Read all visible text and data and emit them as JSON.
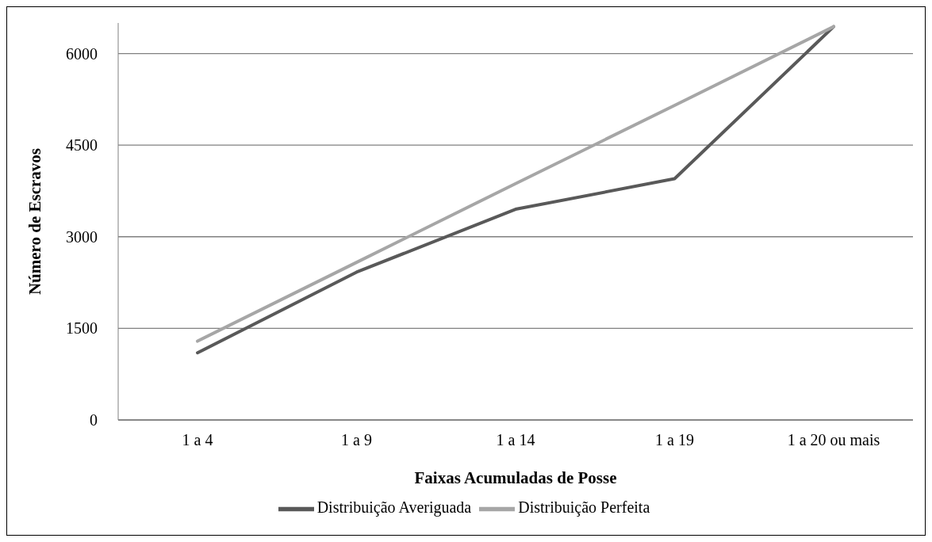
{
  "chart_data": {
    "type": "line",
    "xlabel": "Faixas Acumuladas de Posse",
    "ylabel": "Número de Escravos",
    "categories": [
      "1 a 4",
      "1 a 9",
      "1 a 14",
      "1 a 19",
      "1 a 20 ou mais"
    ],
    "series": [
      {
        "name": "Distribuição Averiguada",
        "color": "#595959",
        "values": [
          1100,
          2420,
          3450,
          3950,
          6440
        ]
      },
      {
        "name": "Distribuição Perfeita",
        "color": "#a6a6a6",
        "values": [
          1290,
          2580,
          3870,
          5150,
          6440
        ]
      }
    ],
    "ylim": [
      0,
      6500
    ],
    "yticks": [
      0,
      1500,
      3000,
      4500,
      6000
    ],
    "grid": "y",
    "legend": "bottom",
    "marker": "none",
    "line_style": "solid"
  }
}
